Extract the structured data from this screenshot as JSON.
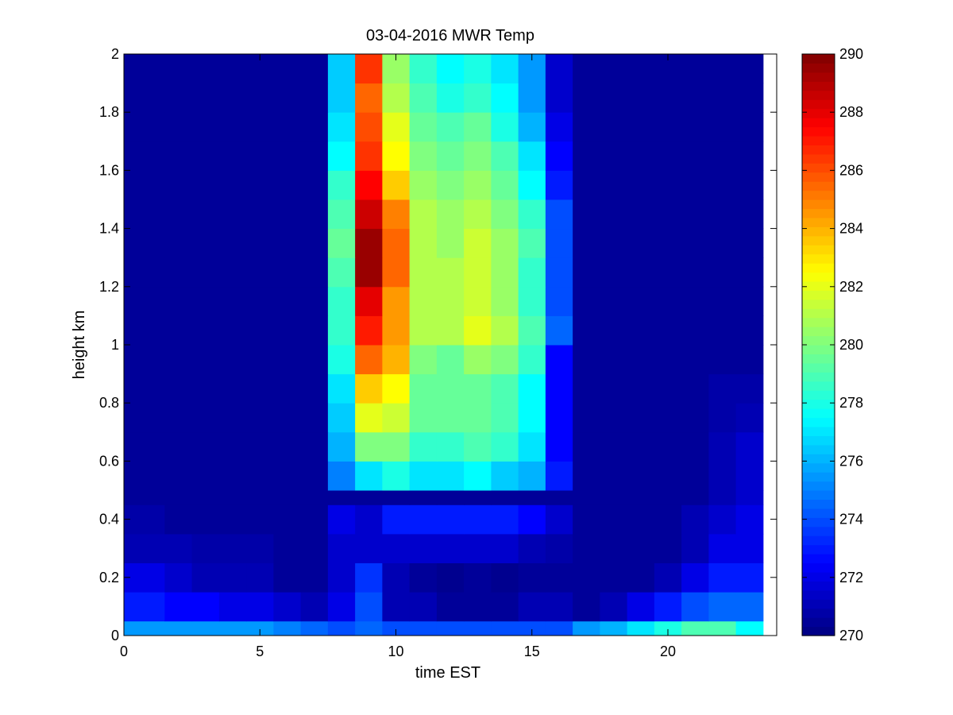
{
  "chart_data": {
    "type": "heatmap",
    "title": "03-04-2016 MWR Temp",
    "xlabel": "time EST",
    "ylabel": "height km",
    "xlim": [
      0,
      24
    ],
    "ylim": [
      0,
      2
    ],
    "x_ticks": [
      0,
      5,
      10,
      15,
      20
    ],
    "y_ticks": [
      0,
      0.2,
      0.4,
      0.6,
      0.8,
      1,
      1.2,
      1.4,
      1.6,
      1.8,
      2
    ],
    "colorbar": {
      "range": [
        270,
        290
      ],
      "ticks": [
        270,
        272,
        274,
        276,
        278,
        280,
        282,
        284,
        286,
        288,
        290
      ],
      "colormap": "jet"
    },
    "x_edges": [
      0,
      1.5,
      2.5,
      3.5,
      4.5,
      5.5,
      6.5,
      7.5,
      8.5,
      9.5,
      10.5,
      11.5,
      12.5,
      13.5,
      14.5,
      15.5,
      16.5,
      17.5,
      18.5,
      19.5,
      20.5,
      21.5,
      22.5,
      23.5
    ],
    "y_edges": [
      0,
      0.05,
      0.15,
      0.25,
      0.35,
      0.45,
      0.5,
      0.6,
      0.7,
      0.8,
      0.9,
      1.0,
      1.1,
      1.2,
      1.3,
      1.4,
      1.5,
      1.6,
      1.7,
      1.8,
      1.9,
      2.0
    ],
    "values": [
      [
        275.5,
        275.5,
        275.5,
        275.5,
        275.5,
        275.0,
        274.5,
        274.0,
        274.5,
        274.0,
        274.0,
        274.0,
        274.0,
        274.0,
        274.0,
        274.0,
        275.5,
        276.0,
        277.0,
        278.0,
        279.0,
        279.0,
        277.5
      ],
      [
        273.0,
        272.5,
        272.5,
        272.0,
        272.0,
        271.5,
        271.0,
        272.0,
        274.0,
        271.0,
        271.0,
        270.5,
        270.5,
        270.5,
        271.0,
        271.0,
        270.5,
        271.0,
        272.0,
        273.0,
        274.0,
        274.5,
        274.5
      ],
      [
        272.0,
        271.5,
        271.0,
        271.0,
        271.0,
        270.5,
        270.5,
        271.5,
        273.5,
        271.0,
        270.5,
        270.3,
        270.5,
        270.3,
        270.5,
        270.5,
        270.5,
        270.5,
        270.5,
        271.0,
        272.0,
        273.0,
        273.0
      ],
      [
        271.0,
        271.0,
        270.8,
        270.8,
        270.8,
        270.5,
        270.5,
        271.5,
        271.5,
        271.5,
        271.5,
        271.5,
        271.5,
        271.5,
        271.0,
        270.8,
        270.5,
        270.5,
        270.5,
        270.5,
        271.0,
        272.0,
        272.0
      ],
      [
        270.8,
        270.5,
        270.5,
        270.5,
        270.5,
        270.5,
        270.5,
        272.0,
        271.5,
        273.0,
        273.0,
        273.0,
        273.0,
        273.0,
        272.5,
        271.5,
        270.5,
        270.5,
        270.5,
        270.5,
        271.0,
        271.5,
        272.0
      ],
      [
        270.5,
        270.5,
        270.5,
        270.5,
        270.5,
        270.5,
        270.5,
        270.5,
        270.5,
        270.5,
        270.5,
        270.5,
        270.5,
        270.5,
        270.5,
        270.5,
        270.5,
        270.5,
        270.5,
        270.5,
        270.5,
        271.0,
        271.5
      ],
      [
        270.5,
        270.5,
        270.5,
        270.5,
        270.5,
        270.5,
        270.5,
        275.0,
        277.0,
        278.0,
        277.0,
        277.0,
        277.5,
        276.5,
        276.0,
        273.0,
        270.5,
        270.5,
        270.5,
        270.5,
        270.5,
        271.0,
        271.5
      ],
      [
        270.5,
        270.5,
        270.5,
        270.5,
        270.5,
        270.5,
        270.5,
        276.0,
        280.0,
        280.0,
        278.5,
        278.5,
        279.0,
        278.5,
        277.0,
        272.5,
        270.5,
        270.5,
        270.5,
        270.5,
        270.5,
        271.0,
        271.5
      ],
      [
        270.5,
        270.5,
        270.5,
        270.5,
        270.5,
        270.5,
        270.5,
        276.5,
        282.0,
        281.5,
        279.5,
        279.5,
        279.5,
        279.0,
        277.5,
        272.5,
        270.5,
        270.5,
        270.5,
        270.5,
        270.5,
        270.8,
        271.0
      ],
      [
        270.5,
        270.5,
        270.5,
        270.5,
        270.5,
        270.5,
        270.5,
        277.0,
        283.5,
        282.5,
        279.5,
        279.5,
        279.5,
        279.0,
        277.5,
        272.5,
        270.5,
        270.5,
        270.5,
        270.5,
        270.5,
        270.8,
        270.8
      ],
      [
        270.5,
        270.5,
        270.5,
        270.5,
        270.5,
        270.5,
        270.5,
        278.0,
        285.5,
        284.0,
        280.0,
        279.5,
        280.5,
        280.0,
        278.5,
        272.5,
        270.5,
        270.5,
        270.5,
        270.5,
        270.5,
        270.5,
        270.5
      ],
      [
        270.5,
        270.5,
        270.5,
        270.5,
        270.5,
        270.5,
        270.5,
        278.5,
        287.0,
        284.5,
        281.0,
        281.0,
        282.0,
        281.0,
        279.0,
        274.5,
        270.5,
        270.5,
        270.5,
        270.5,
        270.5,
        270.5,
        270.5
      ],
      [
        270.5,
        270.5,
        270.5,
        270.5,
        270.5,
        270.5,
        270.5,
        278.5,
        288.0,
        284.5,
        281.0,
        281.0,
        281.5,
        280.5,
        278.5,
        274.0,
        270.5,
        270.5,
        270.5,
        270.5,
        270.5,
        270.5,
        270.5
      ],
      [
        270.5,
        270.5,
        270.5,
        270.5,
        270.5,
        270.5,
        270.5,
        279.0,
        289.5,
        285.5,
        281.0,
        281.0,
        281.5,
        280.5,
        278.5,
        274.0,
        270.5,
        270.5,
        270.5,
        270.5,
        270.5,
        270.5,
        270.5
      ],
      [
        270.5,
        270.5,
        270.5,
        270.5,
        270.5,
        270.5,
        270.5,
        279.5,
        289.5,
        285.5,
        281.0,
        280.5,
        281.5,
        280.5,
        279.0,
        274.0,
        270.5,
        270.5,
        270.5,
        270.5,
        270.5,
        270.5,
        270.5
      ],
      [
        270.5,
        270.5,
        270.5,
        270.5,
        270.5,
        270.5,
        270.5,
        279.0,
        288.5,
        285.0,
        281.0,
        280.5,
        281.0,
        280.0,
        278.5,
        274.0,
        270.5,
        270.5,
        270.5,
        270.5,
        270.5,
        270.5,
        270.5
      ],
      [
        270.5,
        270.5,
        270.5,
        270.5,
        270.5,
        270.5,
        270.5,
        278.5,
        287.5,
        283.5,
        280.5,
        280.0,
        280.5,
        279.5,
        277.5,
        273.0,
        270.5,
        270.5,
        270.5,
        270.5,
        270.5,
        270.5,
        270.5
      ],
      [
        270.5,
        270.5,
        270.5,
        270.5,
        270.5,
        270.5,
        270.5,
        277.5,
        286.5,
        282.5,
        280.0,
        279.5,
        280.0,
        279.0,
        277.0,
        272.5,
        270.5,
        270.5,
        270.5,
        270.5,
        270.5,
        270.5,
        270.5
      ],
      [
        270.5,
        270.5,
        270.5,
        270.5,
        270.5,
        270.5,
        270.5,
        277.0,
        286.0,
        282.0,
        279.5,
        279.0,
        279.5,
        278.0,
        276.0,
        272.0,
        270.5,
        270.5,
        270.5,
        270.5,
        270.5,
        270.5,
        270.5
      ],
      [
        270.5,
        270.5,
        270.5,
        270.5,
        270.5,
        270.5,
        270.5,
        276.5,
        285.5,
        281.0,
        279.0,
        278.0,
        278.5,
        277.5,
        275.5,
        271.5,
        270.5,
        270.5,
        270.5,
        270.5,
        270.5,
        270.5,
        270.5
      ],
      [
        270.5,
        270.5,
        270.5,
        270.5,
        270.5,
        270.5,
        270.5,
        276.5,
        286.5,
        280.5,
        278.5,
        277.5,
        278.0,
        277.0,
        275.5,
        271.5,
        270.5,
        270.5,
        270.5,
        270.5,
        270.5,
        270.5,
        270.5
      ]
    ]
  }
}
